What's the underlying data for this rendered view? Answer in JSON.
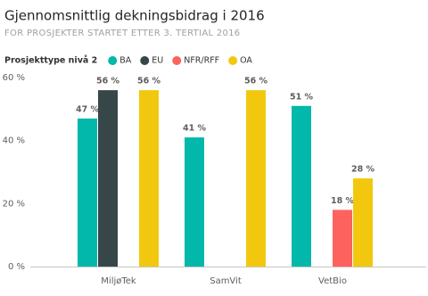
{
  "chart_data": {
    "type": "bar",
    "title": "Gjennomsnittlig dekningsbidrag i 2016",
    "subtitle": "FOR PROSJEKTER STARTET ETTER 3. TERTIAL 2016",
    "legend_title": "Prosjekttype nivå 2",
    "categories": [
      "MiljøTek",
      "SamVit",
      "VetBio"
    ],
    "series": [
      {
        "name": "BA",
        "color": "#01B8AA",
        "values": [
          47,
          41,
          51
        ],
        "value_labels": [
          "47 %",
          "41 %",
          "51 %"
        ]
      },
      {
        "name": "EU",
        "color": "#374649",
        "values": [
          56,
          null,
          null
        ],
        "value_labels": [
          "56 %",
          null,
          null
        ]
      },
      {
        "name": "NFR/RFF",
        "color": "#FD625E",
        "values": [
          null,
          null,
          18
        ],
        "value_labels": [
          null,
          null,
          "18 %"
        ]
      },
      {
        "name": "OA",
        "color": "#F2C80F",
        "values": [
          56,
          56,
          28
        ],
        "value_labels": [
          "56 %",
          "56 %",
          "28 %"
        ]
      }
    ],
    "ylim": [
      0,
      60
    ],
    "yticks": [
      {
        "value": 0,
        "label": "0 %"
      },
      {
        "value": 20,
        "label": "20 %"
      },
      {
        "value": 40,
        "label": "40 %"
      },
      {
        "value": 60,
        "label": "60 %"
      }
    ],
    "grid": false,
    "legend": "top-left"
  }
}
